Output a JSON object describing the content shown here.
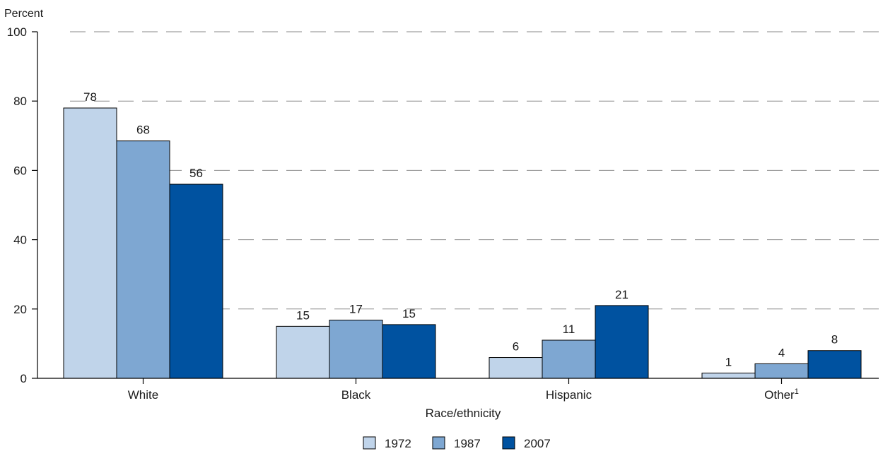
{
  "chart_data": {
    "type": "bar",
    "ylabel": "Percent",
    "xlabel": "Race/ethnicity",
    "categories": [
      "White",
      "Black",
      "Hispanic",
      "Other"
    ],
    "category_footnotes": [
      "",
      "",
      "",
      "1"
    ],
    "ylim": [
      0,
      100
    ],
    "yticks": [
      0,
      20,
      40,
      60,
      80,
      100
    ],
    "grid": true,
    "legend_position": "bottom",
    "series": [
      {
        "name": "1972",
        "color": "#c0d4ea",
        "values": [
          78,
          15,
          6,
          1
        ],
        "plotted": [
          78,
          15,
          6,
          1.5
        ]
      },
      {
        "name": "1987",
        "color": "#7ea7d2",
        "values": [
          68,
          17,
          11,
          4
        ],
        "plotted": [
          68.5,
          16.8,
          11,
          4.2
        ]
      },
      {
        "name": "2007",
        "color": "#0052a0",
        "values": [
          56,
          15,
          21,
          8
        ],
        "plotted": [
          56,
          15.5,
          21,
          8
        ]
      }
    ]
  }
}
